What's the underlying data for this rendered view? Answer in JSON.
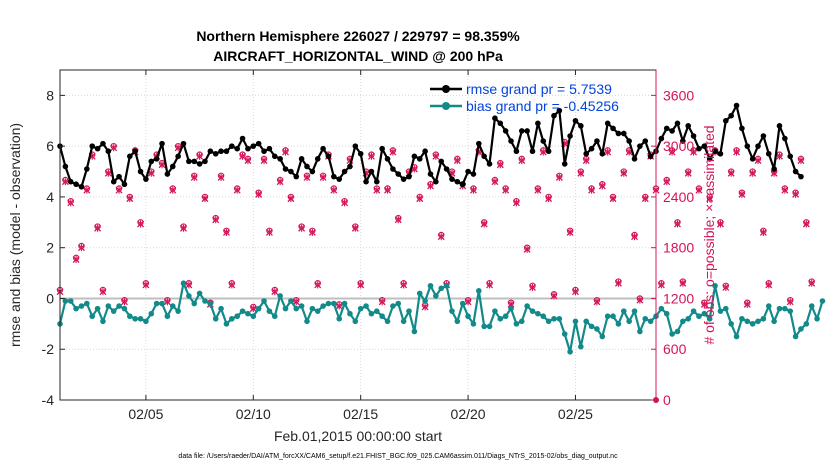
{
  "chart_data": {
    "type": "line",
    "title": "Northern Hemisphere 226027 / 229797 = 98.359%",
    "subtitle": "AIRCRAFT_HORIZONTAL_WIND @ 200 hPa",
    "xlabel": "Feb.01,2015 00:00:00 start",
    "ylabel_left": "rmse and bias (model - observation)",
    "ylabel_right": "# of obs: o=possible; ×=assimilated",
    "footer": "data file: /Users/raeder/DAI/ATM_forcXX/CAM6_setup/f.e21.FHIST_BGC.f09_025.CAM6assim.011/Diags_NTrS_2015-02/obs_diag_output.nc",
    "x_range_days": [
      1,
      28.75
    ],
    "ylim_left": [
      -4,
      9
    ],
    "ylim_right": [
      0,
      3900
    ],
    "x_ticks": [
      {
        "day": 5,
        "label": "02/05"
      },
      {
        "day": 10,
        "label": "02/10"
      },
      {
        "day": 15,
        "label": "02/15"
      },
      {
        "day": 20,
        "label": "02/20"
      },
      {
        "day": 25,
        "label": "02/25"
      }
    ],
    "y_ticks_left": [
      {
        "value": -4,
        "label": "-4"
      },
      {
        "value": -2,
        "label": "-2"
      },
      {
        "value": 0,
        "label": "0"
      },
      {
        "value": 2,
        "label": "2"
      },
      {
        "value": 4,
        "label": "4"
      },
      {
        "value": 6,
        "label": "6"
      },
      {
        "value": 8,
        "label": "8"
      }
    ],
    "y_ticks_right": [
      {
        "value": 0,
        "label": "0"
      },
      {
        "value": 600,
        "label": "600"
      },
      {
        "value": 1200,
        "label": "1200"
      },
      {
        "value": 1800,
        "label": "1800"
      },
      {
        "value": 2400,
        "label": "2400"
      },
      {
        "value": 3000,
        "label": "3000"
      },
      {
        "value": 3600,
        "label": "3600"
      }
    ],
    "zero_line": 0,
    "colors": {
      "rmse": "#000000",
      "bias": "#138a8a",
      "obs": "#d4145a",
      "grid": "#d8d8d8",
      "zero": "#bfbfbf",
      "legend_text": "#0044dd"
    },
    "legend": {
      "placement": "top-right",
      "entries": [
        {
          "name": "rmse",
          "label": "rmse grand pr = 5.7539"
        },
        {
          "name": "bias",
          "label": "bias grand pr = -0.45256"
        }
      ]
    },
    "series": [
      {
        "name": "rmse",
        "axis": "left",
        "start_day": 1.0,
        "step_days": 0.25,
        "values": [
          6.0,
          5.2,
          4.6,
          4.5,
          4.4,
          5.1,
          6.0,
          5.9,
          6.1,
          5.8,
          4.6,
          4.8,
          4.5,
          5.6,
          5.8,
          5.0,
          4.7,
          5.4,
          5.5,
          6.1,
          4.9,
          5.2,
          5.6,
          6.1,
          5.4,
          5.4,
          5.3,
          5.4,
          5.8,
          5.7,
          5.8,
          5.8,
          6.0,
          5.9,
          6.3,
          5.9,
          6.0,
          6.1,
          5.8,
          5.9,
          5.6,
          5.5,
          5.1,
          5.0,
          4.8,
          5.5,
          5.2,
          5.0,
          5.5,
          5.9,
          5.6,
          4.8,
          4.7,
          5.0,
          5.2,
          6.0,
          5.7,
          4.6,
          5.0,
          4.6,
          5.9,
          5.5,
          5.1,
          4.9,
          4.7,
          4.8,
          5.6,
          5.5,
          5.8,
          4.9,
          4.6,
          5.4,
          5.1,
          4.7,
          4.6,
          4.5,
          5.0,
          4.9,
          6.1,
          5.6,
          5.3,
          7.1,
          6.9,
          6.6,
          6.2,
          5.8,
          6.6,
          6.6,
          5.8,
          6.9,
          6.2,
          5.8,
          7.2,
          7.4,
          5.3,
          6.4,
          7.0,
          6.8,
          5.7,
          5.9,
          6.2,
          5.7,
          6.9,
          6.7,
          6.5,
          6.5,
          6.2,
          5.5,
          6.0,
          6.2,
          5.6,
          5.8,
          6.3,
          6.7,
          6.6,
          6.9,
          6.2,
          6.8,
          6.4,
          5.9,
          6.0,
          5.5,
          5.8,
          5.7,
          7.0,
          7.2,
          7.6,
          6.7,
          6.0,
          5.5,
          6.0,
          6.4,
          5.7,
          5.1,
          6.8,
          6.3,
          5.6,
          5.0,
          4.8
        ]
      },
      {
        "name": "bias",
        "axis": "left",
        "start_day": 1.0,
        "step_days": 0.25,
        "values": [
          -1.0,
          -0.1,
          -0.1,
          -0.4,
          -0.3,
          -0.2,
          -0.7,
          -0.4,
          -0.9,
          -0.3,
          -0.5,
          -0.3,
          -0.4,
          -0.7,
          -0.8,
          -0.8,
          -0.9,
          -0.6,
          -0.2,
          -0.2,
          -0.7,
          -0.3,
          -0.5,
          0.6,
          0.1,
          -0.2,
          0.2,
          -0.1,
          -0.2,
          -0.8,
          -0.4,
          -1.0,
          -0.8,
          -0.7,
          -0.5,
          -0.6,
          -0.7,
          -0.4,
          -0.1,
          -0.5,
          -0.7,
          0.1,
          -0.4,
          -0.1,
          -0.4,
          -0.3,
          -0.9,
          -0.4,
          -0.5,
          -0.3,
          -0.2,
          -0.2,
          -0.8,
          -0.2,
          -0.6,
          -0.9,
          -0.4,
          -0.3,
          -0.6,
          -0.5,
          -0.7,
          -0.9,
          -0.3,
          -0.2,
          -0.9,
          -0.5,
          -1.3,
          0.2,
          -0.1,
          0.5,
          0.1,
          0.4,
          0.5,
          -0.5,
          -0.9,
          -0.2,
          -0.7,
          -1.0,
          0.3,
          -1.1,
          -1.1,
          -0.5,
          -0.8,
          -0.7,
          -0.4,
          -1.0,
          -0.9,
          -0.3,
          -0.5,
          -0.6,
          -0.7,
          -0.9,
          -0.8,
          -0.8,
          -1.4,
          -2.1,
          -0.9,
          -1.9,
          -0.9,
          -1.1,
          -1.2,
          -1.5,
          -0.7,
          -0.7,
          -1.0,
          -0.5,
          -0.9,
          -0.5,
          -1.3,
          -0.8,
          -0.9,
          -0.7,
          -0.4,
          -0.6,
          -1.4,
          -1.3,
          -0.9,
          -0.8,
          -0.5,
          -0.7,
          -0.6,
          -0.8,
          0.5,
          -0.5,
          -0.4,
          -1.0,
          -1.5,
          -0.8,
          -0.9,
          -1.0,
          -0.9,
          -0.8,
          -0.3,
          -0.9,
          -0.4,
          -0.4,
          -0.5,
          -1.5,
          -1.2,
          -1.0,
          -0.3,
          -0.8,
          -0.1
        ]
      },
      {
        "name": "obs_possible",
        "axis": "right",
        "marker": "o",
        "start_day": 1.0,
        "step_days": 0.25,
        "values": [
          1300,
          2600,
          2350,
          1680,
          1820,
          2500,
          2900,
          2050,
          1300,
          2700,
          3000,
          2500,
          1180,
          2400,
          2950,
          2100,
          1380,
          2700,
          2900,
          2800,
          1180,
          2500,
          3000,
          2050,
          1380,
          2650,
          2900,
          2400,
          1150,
          2150,
          2650,
          2000,
          1380,
          2500,
          2900,
          2850,
          1100,
          2450,
          2850,
          2000,
          1300,
          2600,
          2950,
          2400,
          1180,
          2050,
          2650,
          2000,
          1380,
          2650,
          2900,
          2500,
          1130,
          2350,
          2850,
          2050,
          1380,
          2700,
          2900,
          2500,
          1180,
          2500,
          2950,
          2150,
          1380,
          2700,
          2750,
          2400,
          1120,
          2550,
          2900,
          1950,
          1380,
          2700,
          2850,
          2550,
          1180,
          2500,
          2950,
          2100,
          1380,
          2600,
          2800,
          2500,
          1150,
          2350,
          2850,
          1800,
          1350,
          2500,
          2950,
          2400,
          1250,
          2650,
          3050,
          2000,
          1300,
          2700,
          2850,
          2500,
          1180,
          2550,
          2950,
          2400,
          1400,
          2700,
          2950,
          1950,
          1200,
          2400,
          2900,
          2500,
          1380,
          2600,
          2950,
          2100,
          1400,
          2700,
          2950,
          2500,
          1150,
          2400,
          2950,
          2100,
          1350,
          2700,
          2950,
          2450,
          1150,
          2700,
          2850,
          2000,
          1380,
          2700,
          2900,
          2500,
          1180,
          2450,
          2850,
          2100,
          1400
        ]
      },
      {
        "name": "obs_assimilated",
        "axis": "right",
        "marker": "x",
        "start_day": 1.0,
        "step_days": 0.25,
        "values": [
          1280,
          2580,
          2330,
          1660,
          1800,
          2480,
          2880,
          2030,
          1280,
          2680,
          2980,
          2480,
          1160,
          2380,
          2930,
          2080,
          1360,
          2680,
          2880,
          2780,
          1160,
          2480,
          2980,
          2030,
          1360,
          2630,
          2880,
          2380,
          1130,
          2130,
          2630,
          1980,
          1360,
          2480,
          2880,
          2830,
          1080,
          2430,
          2830,
          1980,
          1280,
          2580,
          2930,
          2380,
          1160,
          2030,
          2630,
          1980,
          1360,
          2630,
          2880,
          2480,
          1110,
          2330,
          2830,
          2030,
          1360,
          2680,
          2880,
          2480,
          1160,
          2480,
          2930,
          2130,
          1360,
          2680,
          2730,
          2380,
          1100,
          2530,
          2880,
          1930,
          1360,
          2680,
          2830,
          2530,
          1160,
          2480,
          2930,
          2080,
          1360,
          2580,
          2780,
          2480,
          1130,
          2330,
          2830,
          1780,
          1330,
          2480,
          2930,
          2380,
          1230,
          2630,
          3030,
          1980,
          1280,
          2680,
          2830,
          2480,
          1160,
          2530,
          2930,
          2380,
          1380,
          2680,
          2930,
          1930,
          1180,
          2380,
          2880,
          2480,
          1360,
          2580,
          2930,
          2080,
          1380,
          2680,
          2930,
          2480,
          1130,
          2380,
          2930,
          2080,
          1330,
          2680,
          2930,
          2430,
          1130,
          2680,
          2830,
          1980,
          1360,
          2680,
          2880,
          2480,
          1160,
          2430,
          2830,
          2080,
          1380
        ]
      }
    ],
    "extra_points": [
      {
        "name": "obs-zero-point",
        "day": 28.75,
        "value": 0,
        "axis": "right"
      }
    ]
  }
}
